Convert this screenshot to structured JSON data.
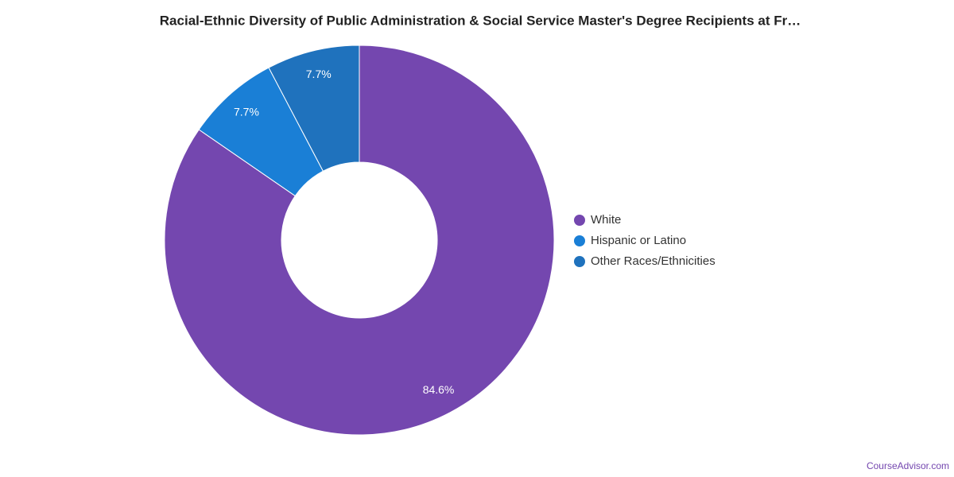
{
  "chart_data": {
    "type": "pie",
    "donut": true,
    "title": "Racial-Ethnic Diversity of Public Administration & Social Service Master's Degree Recipients at Fr…",
    "categories": [
      "White",
      "Hispanic or Latino",
      "Other Races/Ethnicities"
    ],
    "values": [
      84.6,
      7.7,
      7.7
    ],
    "value_labels": [
      "84.6%",
      "7.7%",
      "7.7%"
    ],
    "colors": [
      "#7447af",
      "#1a7fd6",
      "#1f72bd"
    ],
    "legend": "right",
    "source": "CourseAdvisor.com"
  }
}
